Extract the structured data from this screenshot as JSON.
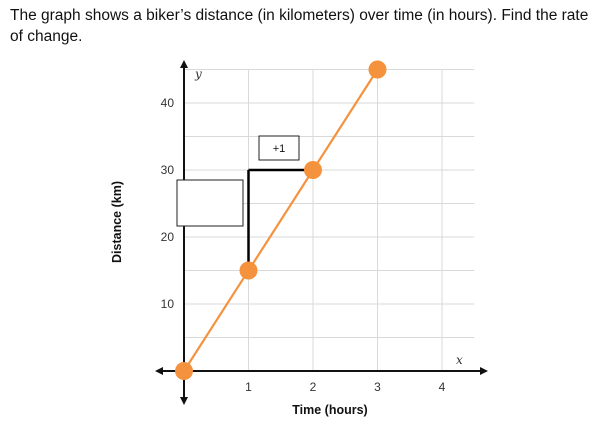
{
  "question": {
    "text": "The graph shows a biker’s distance (in kilometers) over time (in hours). Find the rate of change."
  },
  "chart_data": {
    "type": "line",
    "xlabel": "Time (hours)",
    "ylabel": "Distance (km)",
    "x_var": "x",
    "y_var": "y",
    "x_ticks": [
      "1",
      "2",
      "3",
      "4"
    ],
    "y_ticks": [
      "10",
      "20",
      "30",
      "40"
    ],
    "xlim": [
      -0.5,
      4.7
    ],
    "ylim": [
      -5,
      46
    ],
    "grid": true,
    "series": [
      {
        "x": [
          0,
          3
        ],
        "y": [
          0,
          45
        ],
        "color": "#f5923e"
      }
    ],
    "points": [
      {
        "x": 0,
        "y": 0
      },
      {
        "x": 1,
        "y": 15
      },
      {
        "x": 2,
        "y": 30
      },
      {
        "x": 3,
        "y": 45
      }
    ],
    "slope_triangle": {
      "from": [
        1,
        15
      ],
      "corner": [
        1,
        30
      ],
      "to": [
        2,
        30
      ],
      "run_label": "+1",
      "rise_answer": ""
    },
    "colors": {
      "line": "#f5923e",
      "point": "#f5923e",
      "grid": "#d9d9d9",
      "axis": "#111111"
    }
  }
}
